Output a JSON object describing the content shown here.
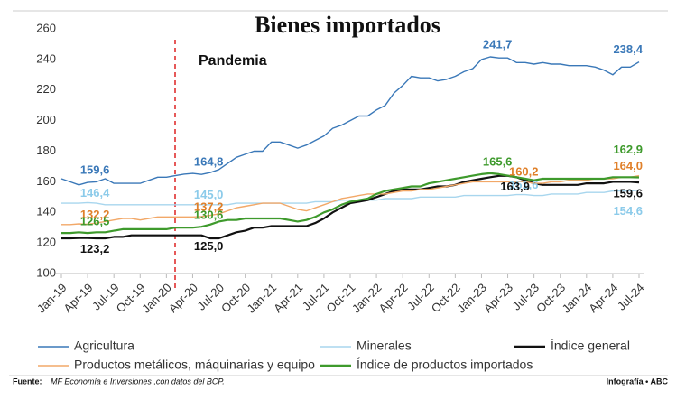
{
  "chart_data": {
    "type": "line",
    "title": "Bienes importados",
    "annotation": "Pandemia",
    "source_label": "Fuente:",
    "source": "MF Economía e Inversiones ,con datos del BCP.",
    "credit": "Infografía • ABC",
    "categories": [
      "Jan-19",
      null,
      null,
      "Apr-19",
      null,
      null,
      "Jul-19",
      null,
      null,
      "Oct-19",
      null,
      null,
      "Jan-20",
      null,
      null,
      "Apr-20",
      null,
      null,
      "Jul-20",
      null,
      null,
      "Oct-20",
      null,
      null,
      "Jan-21",
      null,
      null,
      "Apr-21",
      null,
      null,
      "Jul-21",
      null,
      null,
      "Oct-21",
      null,
      null,
      "Jan-22",
      null,
      null,
      "Apr-22",
      null,
      null,
      "Jul-22",
      null,
      null,
      "Oct-22",
      null,
      null,
      "Jan-23",
      null,
      null,
      "Apr-23",
      null,
      null,
      "Jul-23",
      null,
      null,
      "Oct-23",
      null,
      null,
      "Jan-24",
      null,
      null,
      "Apr-24",
      null,
      null,
      "Jul-24"
    ],
    "ylim": [
      100,
      260
    ],
    "yticks": [
      100,
      120,
      140,
      160,
      180,
      200,
      220,
      240,
      260
    ],
    "grid": false,
    "series": [
      {
        "name": "Agricultura",
        "color": "#3a78b8",
        "values": [
          162,
          160,
          158,
          159.6,
          160,
          162,
          159,
          159,
          159,
          159,
          161,
          163,
          163,
          164,
          165,
          165.5,
          164.8,
          166,
          168,
          172,
          176,
          178,
          180,
          180,
          186,
          186,
          184,
          182,
          184,
          187,
          190,
          195,
          197,
          200,
          203,
          203,
          207,
          210,
          218,
          223,
          229,
          228,
          228,
          226,
          227,
          229,
          232,
          234,
          240,
          241.7,
          241,
          241,
          238,
          238,
          237,
          238,
          237,
          237,
          236,
          236,
          236,
          235,
          233,
          230,
          235,
          235,
          238.4
        ],
        "value_labels": [
          null,
          null,
          null,
          "159,6",
          null,
          null,
          null,
          null,
          null,
          null,
          null,
          null,
          null,
          null,
          null,
          null,
          "164,8",
          null,
          null,
          null,
          null,
          null,
          null,
          null,
          null,
          null,
          null,
          null,
          null,
          null,
          null,
          null,
          null,
          null,
          null,
          null,
          null,
          null,
          null,
          null,
          null,
          null,
          null,
          null,
          null,
          null,
          null,
          null,
          null,
          "241,7",
          null,
          null,
          null,
          null,
          null,
          null,
          null,
          null,
          null,
          null,
          null,
          null,
          null,
          null,
          null,
          null,
          "238,4"
        ]
      },
      {
        "name": "Minerales",
        "color": "#a8d6ee",
        "values": [
          146,
          146,
          146,
          146.4,
          146,
          145,
          145,
          145,
          145,
          145,
          145,
          145,
          145,
          145,
          145,
          145,
          145,
          145,
          145,
          145,
          146,
          146,
          146,
          146,
          146,
          146,
          146,
          146,
          146,
          147,
          147,
          147,
          148,
          148,
          148,
          148,
          148,
          149,
          149,
          149,
          149,
          150,
          150,
          150,
          150,
          150,
          151,
          151,
          151,
          151,
          151,
          151,
          151.6,
          151.6,
          151,
          151,
          152,
          152,
          152,
          152,
          153,
          153,
          153,
          154,
          154,
          154,
          154.6
        ],
        "value_labels": [
          null,
          null,
          null,
          "146,4",
          null,
          null,
          null,
          null,
          null,
          null,
          null,
          null,
          null,
          null,
          null,
          null,
          "145,0",
          null,
          null,
          null,
          null,
          null,
          null,
          null,
          null,
          null,
          null,
          null,
          null,
          null,
          null,
          null,
          null,
          null,
          null,
          null,
          null,
          null,
          null,
          null,
          null,
          null,
          null,
          null,
          null,
          null,
          null,
          null,
          null,
          null,
          null,
          null,
          "151,6",
          null,
          null,
          null,
          null,
          null,
          null,
          null,
          null,
          null,
          null,
          null,
          null,
          null,
          "154,6"
        ]
      },
      {
        "name": "Índice general",
        "color": "#111111",
        "values": [
          123,
          123,
          123.2,
          123.2,
          123,
          123,
          124,
          124,
          125,
          125,
          125,
          125,
          125,
          125,
          125,
          125,
          125,
          123,
          123,
          125,
          127,
          128,
          130,
          130,
          131,
          131,
          131,
          131,
          131,
          133,
          136,
          140,
          143,
          146,
          147,
          148,
          150,
          152,
          154,
          155,
          155,
          155,
          156,
          157,
          157,
          158,
          160,
          161,
          162,
          163,
          163.9,
          163.9,
          163,
          161,
          159,
          158,
          158,
          158,
          158,
          158,
          159,
          159,
          159,
          160,
          160,
          160,
          159.6
        ],
        "value_labels": [
          null,
          null,
          null,
          "123,2",
          null,
          null,
          null,
          null,
          null,
          null,
          null,
          null,
          null,
          null,
          null,
          null,
          "125,0",
          null,
          null,
          null,
          null,
          null,
          null,
          null,
          null,
          null,
          null,
          null,
          null,
          null,
          null,
          null,
          null,
          null,
          null,
          null,
          null,
          null,
          null,
          null,
          null,
          null,
          null,
          null,
          null,
          null,
          null,
          null,
          null,
          null,
          null,
          "163,9",
          null,
          null,
          null,
          null,
          null,
          null,
          null,
          null,
          null,
          null,
          null,
          null,
          null,
          null,
          "159,6"
        ]
      },
      {
        "name": "Productos metálicos, máquinarias y equipo",
        "color": "#f2a868",
        "values": [
          132,
          132,
          132.5,
          132.2,
          133,
          134,
          135,
          136,
          136,
          135,
          136,
          137,
          137,
          137,
          137,
          137,
          137.2,
          138,
          139,
          141,
          143,
          144,
          145,
          146,
          146,
          146,
          144,
          142,
          141,
          143,
          145,
          147,
          149,
          150,
          151,
          152,
          152,
          152,
          153,
          154,
          154,
          155,
          155,
          156,
          157,
          158,
          159,
          160,
          160,
          160,
          160,
          160,
          160.2,
          160,
          159,
          159,
          160,
          160,
          161,
          161,
          161,
          162,
          162,
          162,
          163,
          163,
          164
        ],
        "value_labels": [
          null,
          null,
          null,
          "132,2",
          null,
          null,
          null,
          null,
          null,
          null,
          null,
          null,
          null,
          null,
          null,
          null,
          "137,2",
          null,
          null,
          null,
          null,
          null,
          null,
          null,
          null,
          null,
          null,
          null,
          null,
          null,
          null,
          null,
          null,
          null,
          null,
          null,
          null,
          null,
          null,
          null,
          null,
          null,
          null,
          null,
          null,
          null,
          null,
          null,
          null,
          null,
          null,
          null,
          "160,2",
          null,
          null,
          null,
          null,
          null,
          null,
          null,
          null,
          null,
          null,
          null,
          null,
          null,
          "164,0"
        ]
      },
      {
        "name": "Índice de productos importados",
        "color": "#3e9a2c",
        "values": [
          126.5,
          126.5,
          127,
          126.5,
          127,
          127,
          128,
          129,
          129,
          129,
          129,
          129,
          129,
          130,
          130,
          130,
          130.6,
          132,
          134,
          135,
          135,
          136,
          136,
          136,
          136,
          136,
          135,
          134,
          135,
          137,
          140,
          142,
          145,
          147,
          148,
          149,
          152,
          154,
          155,
          156,
          157,
          157,
          159,
          160,
          161,
          162,
          163,
          164,
          165,
          165.6,
          165,
          164,
          163,
          162,
          161,
          162,
          162,
          162,
          162,
          162,
          162,
          162,
          162,
          163,
          163,
          163,
          162.9
        ],
        "value_labels": [
          null,
          null,
          null,
          "126,5",
          null,
          null,
          null,
          null,
          null,
          null,
          null,
          null,
          null,
          null,
          null,
          null,
          "130,6",
          null,
          null,
          null,
          null,
          null,
          null,
          null,
          null,
          null,
          null,
          null,
          null,
          null,
          null,
          null,
          null,
          null,
          null,
          null,
          null,
          null,
          null,
          null,
          null,
          null,
          null,
          null,
          null,
          null,
          null,
          null,
          null,
          "165,6",
          null,
          null,
          null,
          null,
          null,
          null,
          null,
          null,
          null,
          null,
          null,
          null,
          null,
          null,
          null,
          null,
          "162,9"
        ]
      }
    ]
  }
}
